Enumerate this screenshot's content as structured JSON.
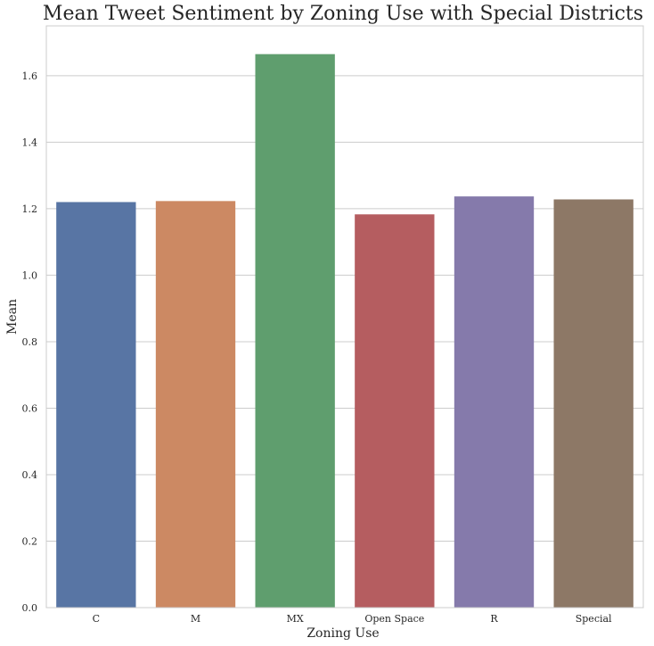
{
  "chart_data": {
    "type": "bar",
    "title": "Mean Tweet Sentiment by Zoning Use with Special Districts",
    "xlabel": "Zoning Use",
    "ylabel": "Mean",
    "categories": [
      "C",
      "M",
      "MX",
      "Open Space",
      "R",
      "Special"
    ],
    "values": [
      1.22,
      1.223,
      1.665,
      1.183,
      1.237,
      1.228
    ],
    "colors": [
      "#5875a4",
      "#cc8963",
      "#5f9e6e",
      "#b55d60",
      "#857aab",
      "#8d7866"
    ],
    "ylim": [
      0,
      1.75
    ],
    "yticks": [
      0.0,
      0.2,
      0.4,
      0.6,
      0.8,
      1.0,
      1.2,
      1.4,
      1.6
    ],
    "ytick_labels": [
      "0.0",
      "0.2",
      "0.4",
      "0.6",
      "0.8",
      "1.0",
      "1.2",
      "1.4",
      "1.6"
    ],
    "grid": true,
    "legend": false
  }
}
